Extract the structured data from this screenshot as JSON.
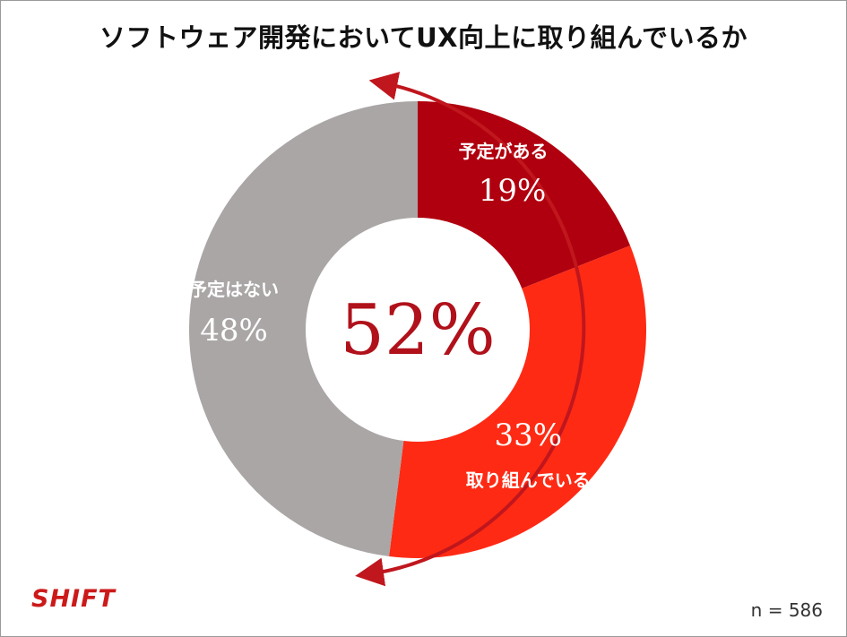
{
  "chart_data": {
    "type": "pie",
    "title": "ソフトウェア開発においてUX向上に取り組んでいるか",
    "center_label": "52%",
    "slices": [
      {
        "label": "予定がある",
        "value": 19,
        "value_label": "19%",
        "color": "#b0000f"
      },
      {
        "label": "取り組んでいる",
        "value": 33,
        "value_label": "33%",
        "color": "#ff2a14"
      },
      {
        "label": "予定はない",
        "value": 48,
        "value_label": "48%",
        "color": "#aaa6a6"
      }
    ],
    "bracket_color": "#c0161d"
  },
  "footer": {
    "logo_text": "SHIFT",
    "sample_size": "n = 586"
  }
}
